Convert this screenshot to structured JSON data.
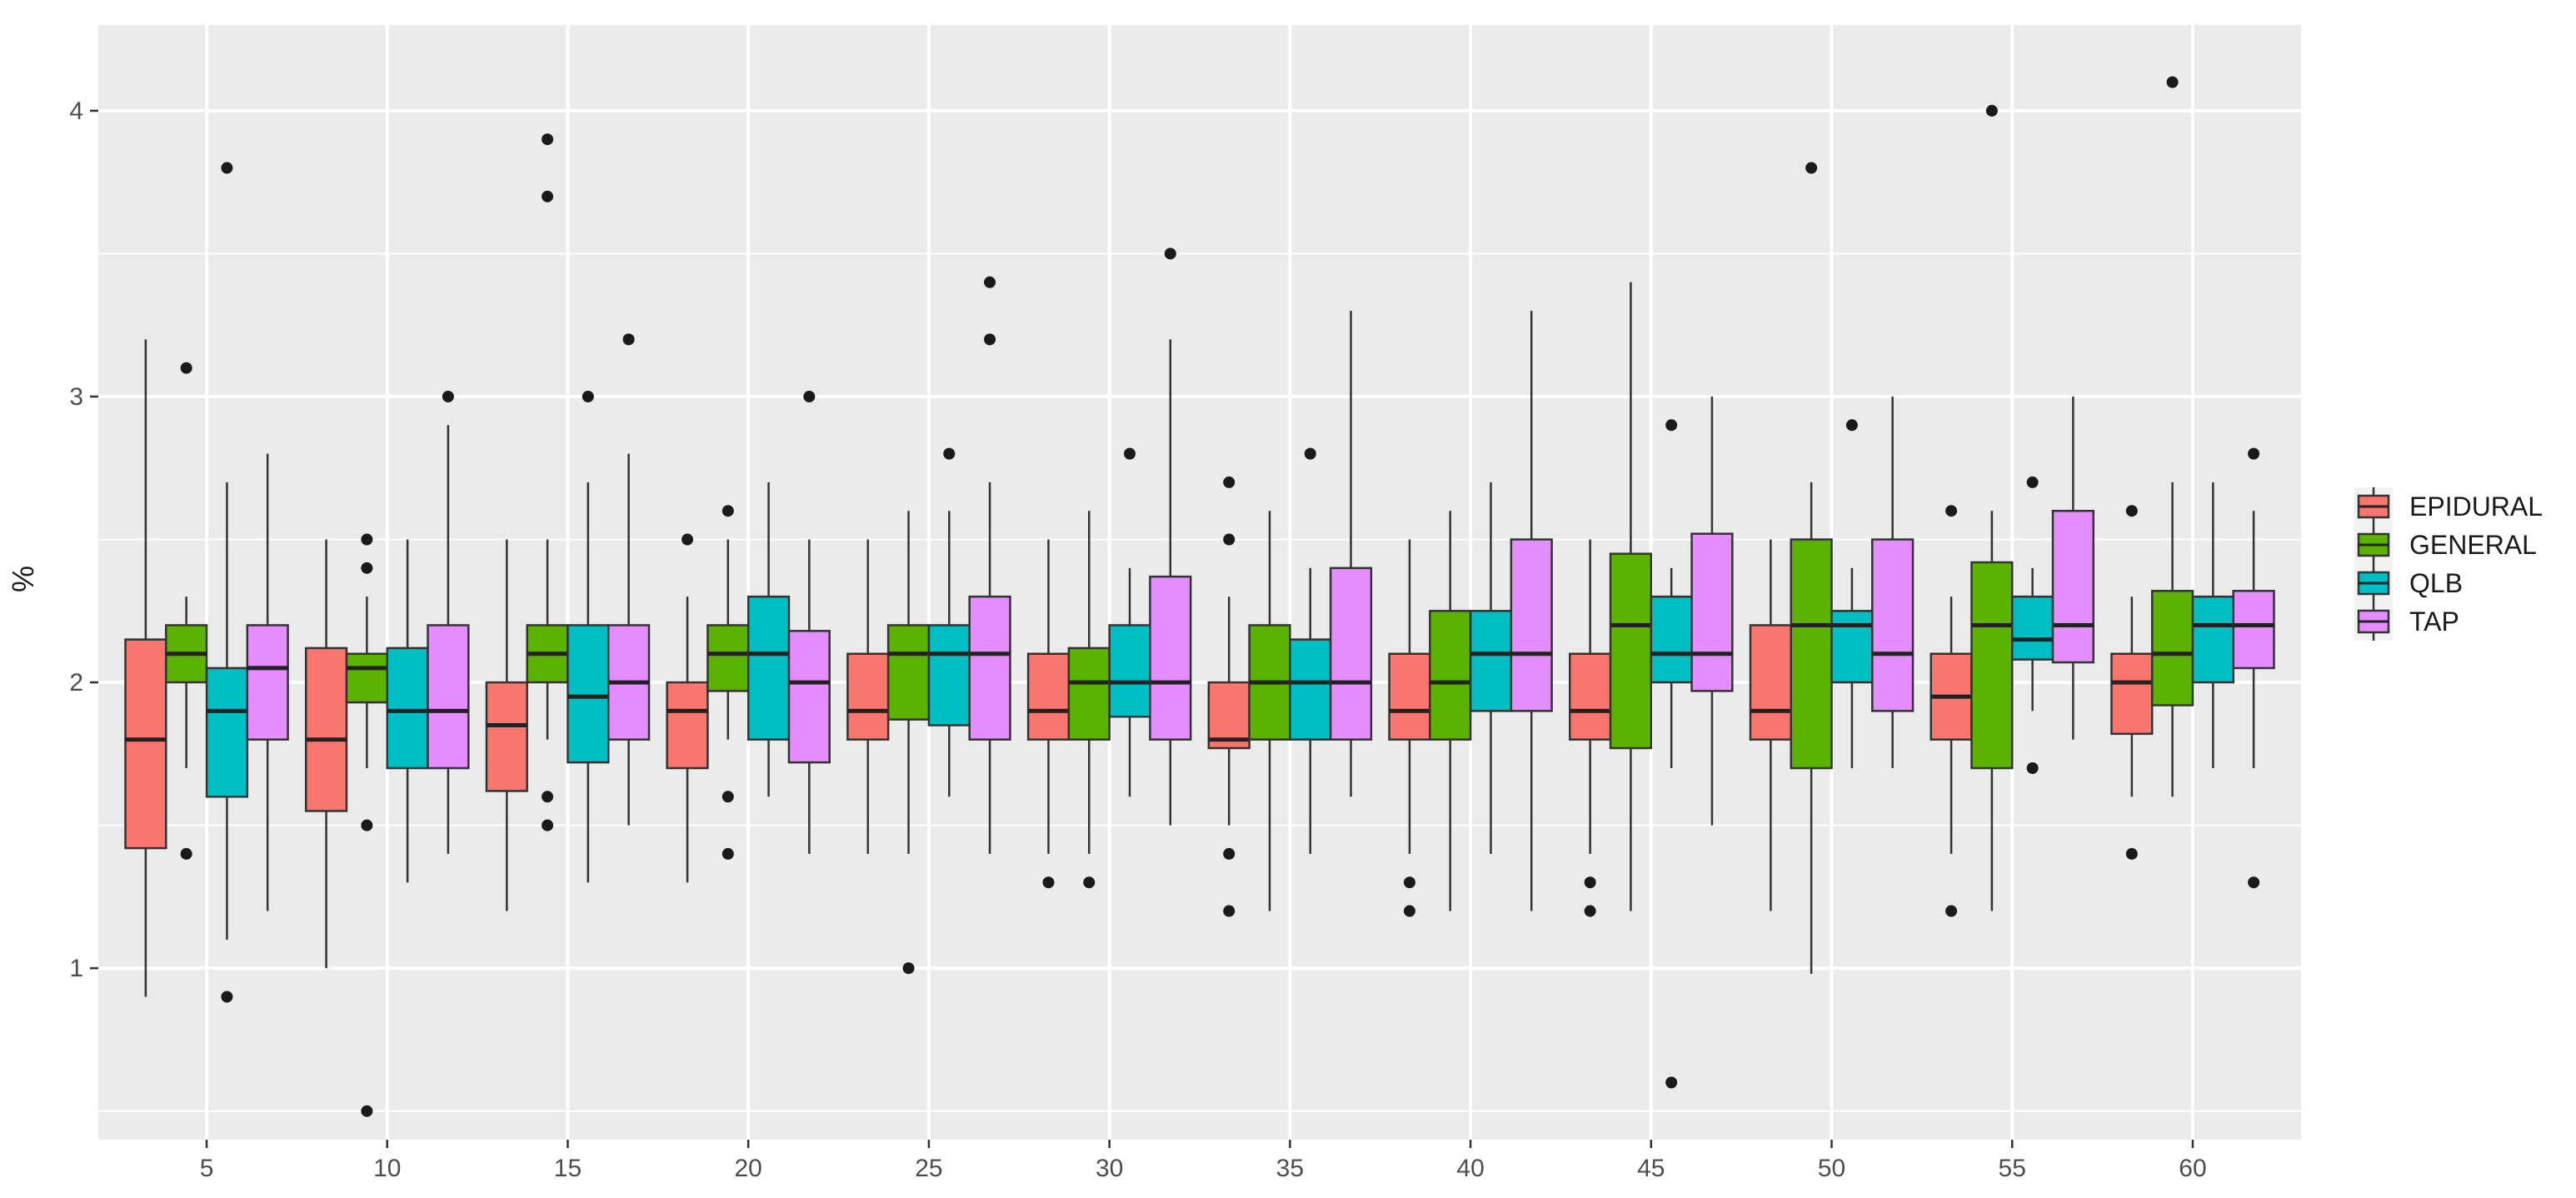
{
  "chart_data": {
    "type": "boxplot",
    "xlabel": "",
    "ylabel": "%",
    "ylim": [
      0.4,
      4.3
    ],
    "yticks": [
      1,
      2,
      3,
      4
    ],
    "categories": [
      "5",
      "10",
      "15",
      "20",
      "25",
      "30",
      "35",
      "40",
      "45",
      "50",
      "55",
      "60"
    ],
    "grid": true,
    "legend_position": "right",
    "legend": [
      "EPIDURAL",
      "GENERAL",
      "QLB",
      "TAP"
    ],
    "colors": {
      "EPIDURAL": "#F8766D",
      "GENERAL": "#5BB300",
      "QLB": "#00BFC4",
      "TAP": "#E58CFF"
    },
    "series": [
      {
        "name": "EPIDURAL",
        "boxes": [
          {
            "q1": 1.42,
            "median": 1.8,
            "q3": 2.15,
            "lower": 0.9,
            "upper": 3.2,
            "outliers": []
          },
          {
            "q1": 1.55,
            "median": 1.8,
            "q3": 2.12,
            "lower": 1.0,
            "upper": 2.5,
            "outliers": []
          },
          {
            "q1": 1.62,
            "median": 1.85,
            "q3": 2.0,
            "lower": 1.2,
            "upper": 2.5,
            "outliers": []
          },
          {
            "q1": 1.7,
            "median": 1.9,
            "q3": 2.0,
            "lower": 1.3,
            "upper": 2.3,
            "outliers": [
              2.5
            ]
          },
          {
            "q1": 1.8,
            "median": 1.9,
            "q3": 2.1,
            "lower": 1.4,
            "upper": 2.5,
            "outliers": []
          },
          {
            "q1": 1.8,
            "median": 1.9,
            "q3": 2.1,
            "lower": 1.4,
            "upper": 2.5,
            "outliers": [
              1.3
            ]
          },
          {
            "q1": 1.77,
            "median": 1.8,
            "q3": 2.0,
            "lower": 1.5,
            "upper": 2.3,
            "outliers": [
              1.4,
              1.2,
              2.5,
              2.7
            ]
          },
          {
            "q1": 1.8,
            "median": 1.9,
            "q3": 2.1,
            "lower": 1.4,
            "upper": 2.5,
            "outliers": [
              1.3,
              1.2
            ]
          },
          {
            "q1": 1.8,
            "median": 1.9,
            "q3": 2.1,
            "lower": 1.4,
            "upper": 2.5,
            "outliers": [
              1.3,
              1.2
            ]
          },
          {
            "q1": 1.8,
            "median": 1.9,
            "q3": 2.2,
            "lower": 1.2,
            "upper": 2.5,
            "outliers": []
          },
          {
            "q1": 1.8,
            "median": 1.95,
            "q3": 2.1,
            "lower": 1.4,
            "upper": 2.3,
            "outliers": [
              1.2,
              2.6
            ]
          },
          {
            "q1": 1.82,
            "median": 2.0,
            "q3": 2.1,
            "lower": 1.6,
            "upper": 2.3,
            "outliers": [
              1.4,
              2.6
            ]
          }
        ]
      },
      {
        "name": "GENERAL",
        "boxes": [
          {
            "q1": 2.0,
            "median": 2.1,
            "q3": 2.2,
            "lower": 1.7,
            "upper": 2.3,
            "outliers": [
              3.1,
              1.4
            ]
          },
          {
            "q1": 1.93,
            "median": 2.05,
            "q3": 2.1,
            "lower": 1.7,
            "upper": 2.3,
            "outliers": [
              2.5,
              2.4,
              1.5,
              0.5
            ]
          },
          {
            "q1": 2.0,
            "median": 2.1,
            "q3": 2.2,
            "lower": 1.8,
            "upper": 2.5,
            "outliers": [
              3.9,
              3.7,
              1.6,
              1.5
            ]
          },
          {
            "q1": 1.97,
            "median": 2.1,
            "q3": 2.2,
            "lower": 1.8,
            "upper": 2.5,
            "outliers": [
              2.6,
              1.6,
              1.4
            ]
          },
          {
            "q1": 1.87,
            "median": 2.1,
            "q3": 2.2,
            "lower": 1.4,
            "upper": 2.6,
            "outliers": [
              1.0
            ]
          },
          {
            "q1": 1.8,
            "median": 2.0,
            "q3": 2.12,
            "lower": 1.4,
            "upper": 2.6,
            "outliers": [
              1.3
            ]
          },
          {
            "q1": 1.8,
            "median": 2.0,
            "q3": 2.2,
            "lower": 1.2,
            "upper": 2.6,
            "outliers": []
          },
          {
            "q1": 1.8,
            "median": 2.0,
            "q3": 2.25,
            "lower": 1.2,
            "upper": 2.6,
            "outliers": []
          },
          {
            "q1": 1.77,
            "median": 2.2,
            "q3": 2.45,
            "lower": 1.2,
            "upper": 3.4,
            "outliers": []
          },
          {
            "q1": 1.7,
            "median": 2.2,
            "q3": 2.5,
            "lower": 0.98,
            "upper": 2.7,
            "outliers": [
              3.8
            ]
          },
          {
            "q1": 1.7,
            "median": 2.2,
            "q3": 2.42,
            "lower": 1.2,
            "upper": 2.6,
            "outliers": [
              4.0
            ]
          },
          {
            "q1": 1.92,
            "median": 2.1,
            "q3": 2.32,
            "lower": 1.6,
            "upper": 2.7,
            "outliers": [
              4.1
            ]
          }
        ]
      },
      {
        "name": "QLB",
        "boxes": [
          {
            "q1": 1.6,
            "median": 1.9,
            "q3": 2.05,
            "lower": 1.1,
            "upper": 2.7,
            "outliers": [
              3.8,
              0.9
            ]
          },
          {
            "q1": 1.7,
            "median": 1.9,
            "q3": 2.12,
            "lower": 1.3,
            "upper": 2.5,
            "outliers": []
          },
          {
            "q1": 1.72,
            "median": 1.95,
            "q3": 2.2,
            "lower": 1.3,
            "upper": 2.7,
            "outliers": [
              3.0
            ]
          },
          {
            "q1": 1.8,
            "median": 2.1,
            "q3": 2.3,
            "lower": 1.6,
            "upper": 2.7,
            "outliers": []
          },
          {
            "q1": 1.85,
            "median": 2.1,
            "q3": 2.2,
            "lower": 1.6,
            "upper": 2.6,
            "outliers": [
              2.8
            ]
          },
          {
            "q1": 1.88,
            "median": 2.0,
            "q3": 2.2,
            "lower": 1.6,
            "upper": 2.4,
            "outliers": [
              2.8
            ]
          },
          {
            "q1": 1.8,
            "median": 2.0,
            "q3": 2.15,
            "lower": 1.4,
            "upper": 2.4,
            "outliers": [
              2.8
            ]
          },
          {
            "q1": 1.9,
            "median": 2.1,
            "q3": 2.25,
            "lower": 1.4,
            "upper": 2.7,
            "outliers": []
          },
          {
            "q1": 2.0,
            "median": 2.1,
            "q3": 2.3,
            "lower": 1.7,
            "upper": 2.4,
            "outliers": [
              2.9,
              0.6
            ]
          },
          {
            "q1": 2.0,
            "median": 2.2,
            "q3": 2.25,
            "lower": 1.7,
            "upper": 2.4,
            "outliers": [
              2.9
            ]
          },
          {
            "q1": 2.08,
            "median": 2.15,
            "q3": 2.3,
            "lower": 1.9,
            "upper": 2.4,
            "outliers": [
              2.7,
              1.7
            ]
          },
          {
            "q1": 2.0,
            "median": 2.2,
            "q3": 2.3,
            "lower": 1.7,
            "upper": 2.7,
            "outliers": []
          }
        ]
      },
      {
        "name": "TAP",
        "boxes": [
          {
            "q1": 1.8,
            "median": 2.05,
            "q3": 2.2,
            "lower": 1.2,
            "upper": 2.8,
            "outliers": []
          },
          {
            "q1": 1.7,
            "median": 1.9,
            "q3": 2.2,
            "lower": 1.4,
            "upper": 2.9,
            "outliers": [
              3.0
            ]
          },
          {
            "q1": 1.8,
            "median": 2.0,
            "q3": 2.2,
            "lower": 1.5,
            "upper": 2.8,
            "outliers": [
              3.2
            ]
          },
          {
            "q1": 1.72,
            "median": 2.0,
            "q3": 2.18,
            "lower": 1.4,
            "upper": 2.5,
            "outliers": [
              3.0
            ]
          },
          {
            "q1": 1.8,
            "median": 2.1,
            "q3": 2.3,
            "lower": 1.4,
            "upper": 2.7,
            "outliers": [
              3.4,
              3.2
            ]
          },
          {
            "q1": 1.8,
            "median": 2.0,
            "q3": 2.37,
            "lower": 1.5,
            "upper": 3.2,
            "outliers": [
              3.5
            ]
          },
          {
            "q1": 1.8,
            "median": 2.0,
            "q3": 2.4,
            "lower": 1.6,
            "upper": 3.3,
            "outliers": []
          },
          {
            "q1": 1.9,
            "median": 2.1,
            "q3": 2.5,
            "lower": 1.2,
            "upper": 3.3,
            "outliers": []
          },
          {
            "q1": 1.97,
            "median": 2.1,
            "q3": 2.52,
            "lower": 1.5,
            "upper": 3.0,
            "outliers": []
          },
          {
            "q1": 1.9,
            "median": 2.1,
            "q3": 2.5,
            "lower": 1.7,
            "upper": 3.0,
            "outliers": []
          },
          {
            "q1": 2.07,
            "median": 2.2,
            "q3": 2.6,
            "lower": 1.8,
            "upper": 3.0,
            "outliers": []
          },
          {
            "q1": 2.05,
            "median": 2.2,
            "q3": 2.32,
            "lower": 1.7,
            "upper": 2.6,
            "outliers": [
              2.8,
              1.3
            ]
          }
        ]
      }
    ]
  }
}
